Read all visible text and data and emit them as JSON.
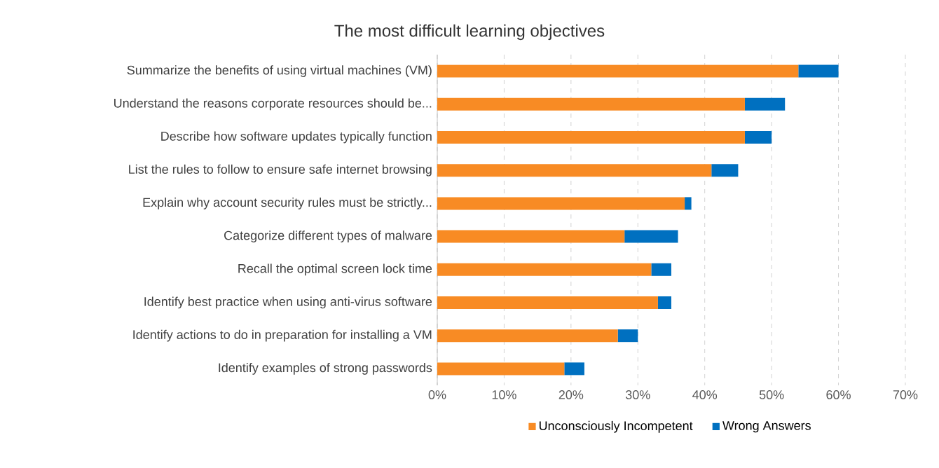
{
  "chart_data": {
    "type": "bar",
    "orientation": "horizontal",
    "stacked": true,
    "title": "The most difficult learning objectives",
    "categories": [
      "Summarize the benefits of using virtual machines (VM)",
      "Understand the reasons corporate resources should be...",
      "Describe how software updates typically function",
      "List the rules to follow to ensure safe internet browsing",
      "Explain why account security rules must be strictly...",
      "Categorize different types of malware",
      "Recall the optimal screen lock time",
      "Identify best practice when using anti-virus software",
      "Identify actions to do in preparation for installing a VM",
      "Identify examples of strong passwords"
    ],
    "series": [
      {
        "name": "Unconsciously Incompetent",
        "color": "#f88b24",
        "values": [
          54,
          46,
          46,
          41,
          37,
          28,
          32,
          33,
          27,
          19
        ]
      },
      {
        "name": "Wrong Answers",
        "color": "#0070c0",
        "values": [
          6,
          6,
          4,
          4,
          1,
          8,
          3,
          2,
          3,
          3
        ]
      }
    ],
    "xlim": [
      0,
      70
    ],
    "xticks": [
      {
        "value": 0,
        "label": "0%"
      },
      {
        "value": 10,
        "label": "10%"
      },
      {
        "value": 20,
        "label": "20%"
      },
      {
        "value": 30,
        "label": "30%"
      },
      {
        "value": 40,
        "label": "40%"
      },
      {
        "value": 50,
        "label": "50%"
      },
      {
        "value": 60,
        "label": "60%"
      },
      {
        "value": 70,
        "label": "70%"
      }
    ],
    "grid": "x",
    "legend": "bottom"
  }
}
